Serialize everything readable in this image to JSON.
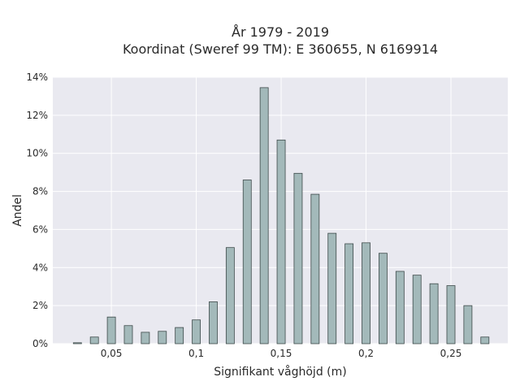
{
  "chart_data": {
    "type": "bar",
    "title": "År 1979 - 2019",
    "subtitle": "Koordinat (Sweref 99 TM): E 360655, N 6169914",
    "xlabel": "Signifikant våghöjd (m)",
    "ylabel": "Andel",
    "x": [
      0.03,
      0.04,
      0.05,
      0.06,
      0.07,
      0.08,
      0.09,
      0.1,
      0.11,
      0.12,
      0.13,
      0.14,
      0.15,
      0.16,
      0.17,
      0.18,
      0.19,
      0.2,
      0.21,
      0.22,
      0.23,
      0.24,
      0.25,
      0.26,
      0.27
    ],
    "values": [
      0.05,
      0.35,
      1.4,
      0.95,
      0.6,
      0.65,
      0.85,
      1.25,
      2.2,
      5.05,
      8.6,
      13.45,
      10.7,
      8.95,
      7.85,
      5.8,
      5.25,
      5.3,
      4.75,
      3.8,
      3.6,
      3.15,
      3.05,
      2.0,
      0.35
    ],
    "xlim": [
      0.0155,
      0.2835
    ],
    "ylim": [
      0,
      14
    ],
    "x_ticks": [
      0.05,
      0.1,
      0.15,
      0.2,
      0.25
    ],
    "x_tick_labels": [
      "0,05",
      "0,1",
      "0,15",
      "0,2",
      "0,25"
    ],
    "y_ticks": [
      0,
      2,
      4,
      6,
      8,
      10,
      12,
      14
    ],
    "y_tick_labels": [
      "0%",
      "2%",
      "4%",
      "6%",
      "8%",
      "10%",
      "12%",
      "14%"
    ],
    "bar_color": "#a3b9ba",
    "bar_edge_color": "#3e4a4a",
    "plot_background": "#e9e9f0",
    "grid": true,
    "grid_color": "#ffffff"
  }
}
